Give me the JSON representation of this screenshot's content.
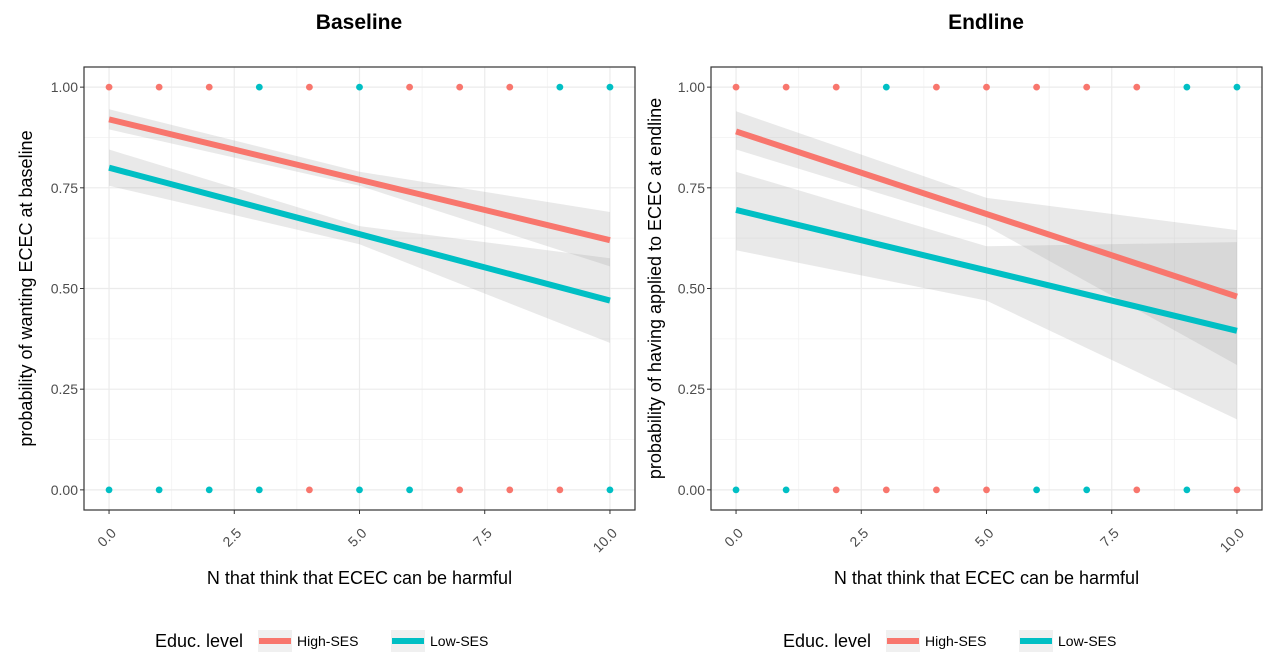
{
  "chart_data": [
    {
      "type": "scatter",
      "title": "Baseline",
      "xlabel": "N that think that ECEC can be harmful",
      "ylabel": "probability of wanting ECEC at baseline",
      "xlim": [
        -0.5,
        10.5
      ],
      "ylim": [
        -0.05,
        1.05
      ],
      "x_ticks": [
        "0.0",
        "2.5",
        "5.0",
        "7.5",
        "10.0"
      ],
      "y_ticks": [
        "0.00",
        "0.25",
        "0.50",
        "0.75",
        "1.00"
      ],
      "grid": true,
      "legend": {
        "position": "bottom",
        "title": "Educ. level",
        "items": [
          "High-SES",
          "Low-SES"
        ]
      },
      "series": [
        {
          "name": "High-SES",
          "color": "#F8766D",
          "points": [
            [
              0,
              1
            ],
            [
              1,
              1
            ],
            [
              2,
              1
            ],
            [
              4,
              1
            ],
            [
              6,
              1
            ],
            [
              7,
              1
            ],
            [
              8,
              1
            ],
            [
              4,
              0
            ],
            [
              7,
              0
            ],
            [
              8,
              0
            ],
            [
              9,
              0
            ]
          ],
          "fit": [
            [
              0,
              0.92
            ],
            [
              10,
              0.62
            ]
          ],
          "band_upper": [
            [
              0,
              0.945
            ],
            [
              5,
              0.79
            ],
            [
              10,
              0.69
            ]
          ],
          "band_lower": [
            [
              0,
              0.895
            ],
            [
              5,
              0.755
            ],
            [
              10,
              0.555
            ]
          ]
        },
        {
          "name": "Low-SES",
          "color": "#00BFC4",
          "points": [
            [
              3,
              1
            ],
            [
              5,
              1
            ],
            [
              9,
              1
            ],
            [
              10,
              1
            ],
            [
              0,
              0
            ],
            [
              1,
              0
            ],
            [
              2,
              0
            ],
            [
              3,
              0
            ],
            [
              5,
              0
            ],
            [
              6,
              0
            ],
            [
              10,
              0
            ]
          ],
          "fit": [
            [
              0,
              0.8
            ],
            [
              10,
              0.47
            ]
          ],
          "band_upper": [
            [
              0,
              0.845
            ],
            [
              5,
              0.655
            ],
            [
              10,
              0.575
            ]
          ],
          "band_lower": [
            [
              0,
              0.755
            ],
            [
              5,
              0.61
            ],
            [
              10,
              0.365
            ]
          ]
        }
      ]
    },
    {
      "type": "scatter",
      "title": "Endline",
      "xlabel": "N that think that ECEC can be harmful",
      "ylabel": "probability of having applied to ECEC at endline",
      "xlim": [
        -0.5,
        10.5
      ],
      "ylim": [
        -0.05,
        1.05
      ],
      "x_ticks": [
        "0.0",
        "2.5",
        "5.0",
        "7.5",
        "10.0"
      ],
      "y_ticks": [
        "0.00",
        "0.25",
        "0.50",
        "0.75",
        "1.00"
      ],
      "grid": true,
      "legend": {
        "position": "bottom",
        "title": "Educ. level",
        "items": [
          "High-SES",
          "Low-SES"
        ]
      },
      "series": [
        {
          "name": "High-SES",
          "color": "#F8766D",
          "points": [
            [
              0,
              1
            ],
            [
              1,
              1
            ],
            [
              2,
              1
            ],
            [
              4,
              1
            ],
            [
              5,
              1
            ],
            [
              6,
              1
            ],
            [
              7,
              1
            ],
            [
              8,
              1
            ],
            [
              2,
              0
            ],
            [
              3,
              0
            ],
            [
              4,
              0
            ],
            [
              5,
              0
            ],
            [
              8,
              0
            ],
            [
              10,
              0
            ]
          ],
          "fit": [
            [
              0,
              0.89
            ],
            [
              10,
              0.48
            ]
          ],
          "band_upper": [
            [
              0,
              0.94
            ],
            [
              5,
              0.725
            ],
            [
              10,
              0.645
            ]
          ],
          "band_lower": [
            [
              0,
              0.845
            ],
            [
              5,
              0.655
            ],
            [
              10,
              0.31
            ]
          ]
        },
        {
          "name": "Low-SES",
          "color": "#00BFC4",
          "points": [
            [
              3,
              1
            ],
            [
              9,
              1
            ],
            [
              10,
              1
            ],
            [
              0,
              0
            ],
            [
              1,
              0
            ],
            [
              6,
              0
            ],
            [
              7,
              0
            ],
            [
              9,
              0
            ]
          ],
          "fit": [
            [
              0,
              0.695
            ],
            [
              10,
              0.395
            ]
          ],
          "band_upper": [
            [
              0,
              0.79
            ],
            [
              5,
              0.605
            ],
            [
              10,
              0.615
            ]
          ],
          "band_lower": [
            [
              0,
              0.595
            ],
            [
              5,
              0.47
            ],
            [
              10,
              0.175
            ]
          ]
        }
      ]
    }
  ]
}
